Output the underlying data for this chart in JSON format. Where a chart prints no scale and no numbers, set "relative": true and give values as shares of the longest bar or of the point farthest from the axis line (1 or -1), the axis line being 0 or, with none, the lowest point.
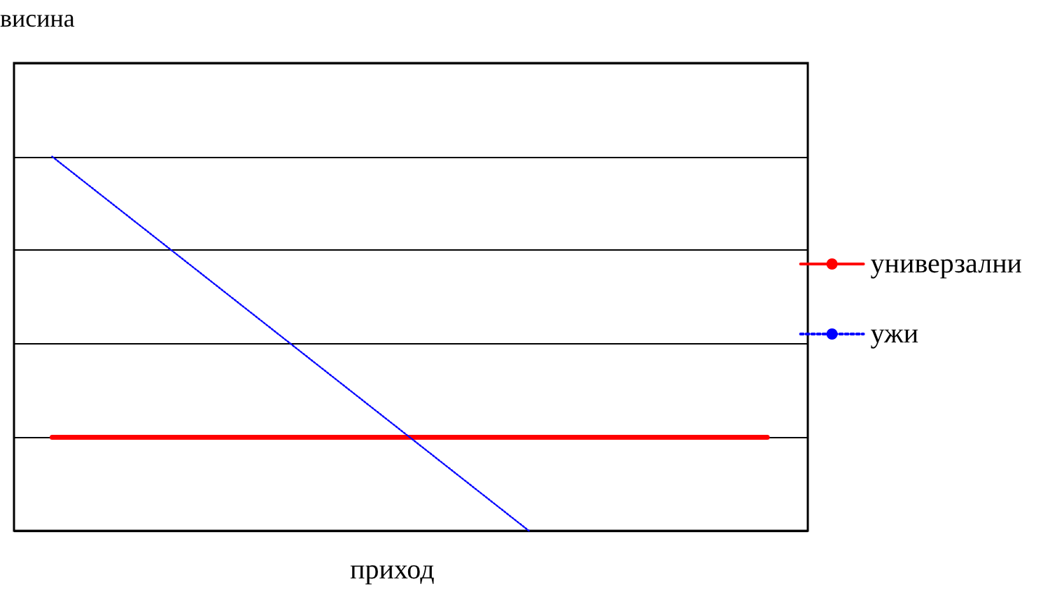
{
  "chart_data": {
    "type": "line",
    "relative": true,
    "xlabel": "приход",
    "ylabel": "висина",
    "categories": [
      null,
      null,
      null,
      null
    ],
    "series": [
      {
        "name": "универзални",
        "color": "#ff0000",
        "line_style": "solid",
        "values": [
          0.25,
          0.25,
          0.25,
          0.25
        ]
      },
      {
        "name": "ужи",
        "color": "#0000ff",
        "line_style": "dotted",
        "values": [
          1,
          0.5,
          0,
          null
        ]
      }
    ],
    "grid": "y",
    "legend": "right",
    "marker": "none"
  }
}
